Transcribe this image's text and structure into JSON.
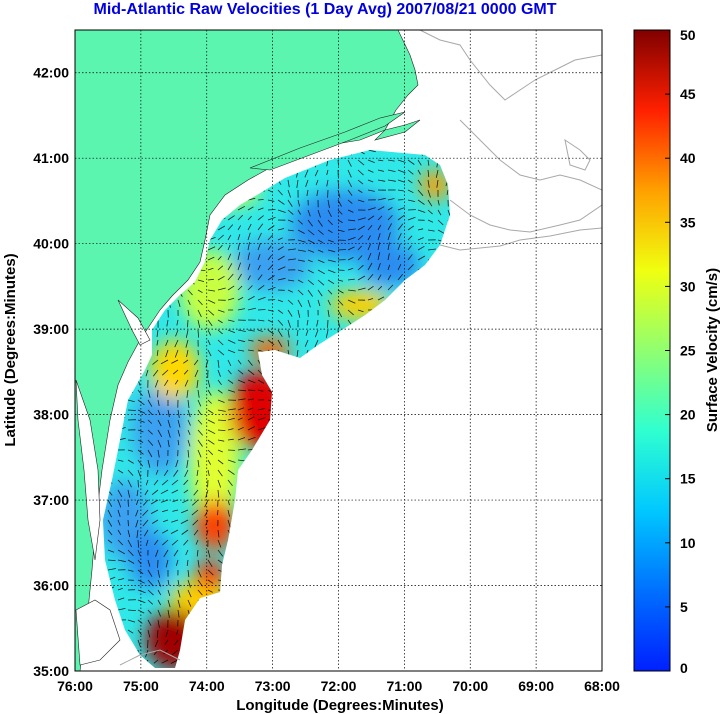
{
  "title": "Mid-Atlantic Raw Velocities (1 Day Avg) 2007/08/21 0000 GMT",
  "map": {
    "xlabel": "Longitude (Degrees:Minutes)",
    "ylabel": "Latitude (Degrees:Minutes)",
    "lon_range": [
      -76,
      -68
    ],
    "lat_range": [
      35,
      42.5
    ],
    "x_ticks": [
      {
        "value": -76,
        "label": "76:00"
      },
      {
        "value": -75,
        "label": "75:00"
      },
      {
        "value": -74,
        "label": "74:00"
      },
      {
        "value": -73,
        "label": "73:00"
      },
      {
        "value": -72,
        "label": "72:00"
      },
      {
        "value": -71,
        "label": "71:00"
      },
      {
        "value": -70,
        "label": "70:00"
      },
      {
        "value": -69,
        "label": "69:00"
      },
      {
        "value": -68,
        "label": "68:00"
      }
    ],
    "y_ticks": [
      {
        "value": 35,
        "label": "35:00"
      },
      {
        "value": 36,
        "label": "36:00"
      },
      {
        "value": 37,
        "label": "37:00"
      },
      {
        "value": 38,
        "label": "38:00"
      },
      {
        "value": 39,
        "label": "39:00"
      },
      {
        "value": 40,
        "label": "40:00"
      },
      {
        "value": 41,
        "label": "41:00"
      },
      {
        "value": 42,
        "label": "42:00"
      }
    ],
    "grid": true,
    "land_color": "#5cf5b0",
    "coast_color": "#a8a8a8"
  },
  "colorbar": {
    "label": "Surface Velocity (cm/s)",
    "min": 0,
    "max": 50,
    "ticks": [
      {
        "value": 0,
        "label": "0"
      },
      {
        "value": 5,
        "label": "5"
      },
      {
        "value": 10,
        "label": "10"
      },
      {
        "value": 15,
        "label": "15"
      },
      {
        "value": 20,
        "label": "20"
      },
      {
        "value": 25,
        "label": "25"
      },
      {
        "value": 30,
        "label": "30"
      },
      {
        "value": 35,
        "label": "35"
      },
      {
        "value": 40,
        "label": "40"
      },
      {
        "value": 45,
        "label": "45"
      },
      {
        "value": 50,
        "label": "50"
      }
    ],
    "colormap": "jet"
  }
}
